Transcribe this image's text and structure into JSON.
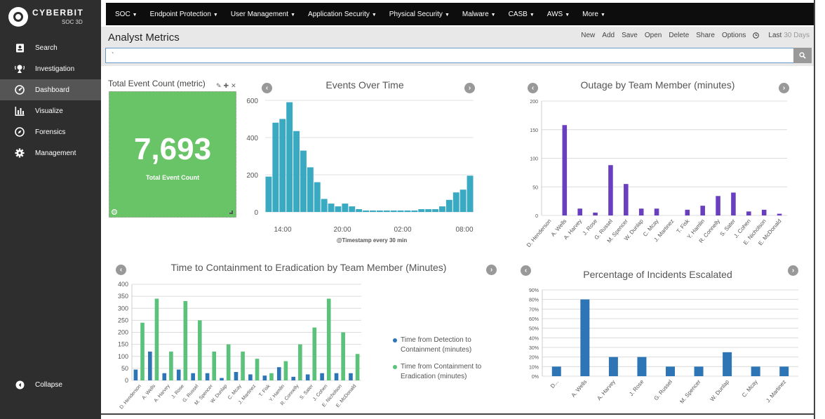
{
  "app": {
    "brand": "CYBERBIT",
    "product": "SOC 3D"
  },
  "sidebar": {
    "items": [
      {
        "label": "Search",
        "icon": "search-icon"
      },
      {
        "label": "Investigation",
        "icon": "investigation-icon"
      },
      {
        "label": "Dashboard",
        "icon": "dashboard-icon"
      },
      {
        "label": "Visualize",
        "icon": "bar-chart-icon"
      },
      {
        "label": "Forensics",
        "icon": "compass-icon"
      },
      {
        "label": "Management",
        "icon": "gear-icon"
      }
    ],
    "active": "Dashboard",
    "collapse_label": "Collapse"
  },
  "topmenu": [
    "SOC",
    "Endpoint Protection",
    "User Management",
    "Application Security",
    "Physical Security",
    "Malware",
    "CASB",
    "AWS",
    "More"
  ],
  "header": {
    "title": "Analyst Metrics",
    "actions": [
      "New",
      "Add",
      "Save",
      "Open",
      "Delete",
      "Share",
      "Options"
    ],
    "time_prefix": "Last",
    "time_value": "30 Days",
    "search_value": "`"
  },
  "metric": {
    "title": "Total Event Count (metric)",
    "value": "7,693",
    "label": "Total Event Count"
  },
  "colors": {
    "metric_green": "#68c466",
    "teal": "#3aaac2",
    "purple": "#6a3fbf",
    "blue": "#2e75b6",
    "green": "#5ac27a"
  },
  "chart_data": [
    {
      "type": "bar",
      "title": "Events Over Time",
      "xlabel": "@Timestamp every 30 min",
      "ylim": [
        0,
        600
      ],
      "yticks": [
        0,
        200,
        400,
        600
      ],
      "xticks": [
        "14:00",
        "20:00",
        "02:00",
        "08:00"
      ],
      "values": [
        190,
        480,
        500,
        590,
        435,
        330,
        240,
        160,
        70,
        45,
        30,
        45,
        30,
        15,
        8,
        8,
        8,
        8,
        8,
        8,
        8,
        8,
        15,
        15,
        15,
        30,
        65,
        105,
        120,
        195
      ]
    },
    {
      "type": "bar",
      "title": "Outage by Team Member (minutes)",
      "ylim": [
        0,
        200
      ],
      "yticks": [
        0,
        50,
        100,
        150,
        200
      ],
      "categories": [
        "D. Henderson",
        "A. Wells",
        "A. Harvey",
        "J. Rose",
        "G. Russel",
        "M. Spencer",
        "W. Dunlap",
        "C. Mcay",
        "J. Martinez",
        "T. Fisk",
        "Y. Hamlin",
        "R. Connelly",
        "S. Sater",
        "J. Cohen",
        "E. Nicholson",
        "E. McDonald"
      ],
      "values": [
        0,
        158,
        12,
        5,
        88,
        55,
        12,
        12,
        0,
        10,
        17,
        34,
        40,
        7,
        10,
        3
      ]
    },
    {
      "type": "bar",
      "title": "Time to Containment to Eradication by Team Member (Minutes)",
      "ylim": [
        0,
        400
      ],
      "yticks": [
        0,
        50,
        100,
        150,
        200,
        250,
        300,
        350,
        400
      ],
      "categories": [
        "D. Henderson",
        "A. Wells",
        "A. Harvey",
        "J. Rose",
        "G. Russel",
        "M. Spencer",
        "W. Dunlap",
        "C. Mcay",
        "J. Martinez",
        "T. Fisk",
        "Y. Hamlin",
        "R. Connelly",
        "S. Sater",
        "J. Cohen",
        "E. Nicholson",
        "E. McDonald"
      ],
      "series": [
        {
          "name": "Time from Detection to Containment (minutes)",
          "values": [
            45,
            120,
            30,
            45,
            30,
            30,
            10,
            35,
            25,
            20,
            55,
            15,
            25,
            30,
            30,
            30
          ]
        },
        {
          "name": "Time from Containment to Eradication (minutes)",
          "values": [
            240,
            340,
            120,
            330,
            250,
            120,
            150,
            120,
            90,
            30,
            80,
            150,
            220,
            340,
            200,
            110
          ]
        }
      ],
      "legend": "right"
    },
    {
      "type": "bar",
      "title": "Percentage of Incidents Escalated",
      "ylim": [
        0,
        90
      ],
      "yticks": [
        "0%",
        "10%",
        "20%",
        "30%",
        "40%",
        "50%",
        "60%",
        "70%",
        "80%",
        "90%"
      ],
      "categories": [
        "D...",
        "A. Wells",
        "A. Harvey",
        "J. Rose",
        "G. Russel",
        "M. Spencer",
        "W. Dunlap",
        "C. Mcay",
        "J. Martinez"
      ],
      "values": [
        10,
        80,
        20,
        20,
        10,
        10,
        25,
        10,
        10
      ]
    }
  ]
}
